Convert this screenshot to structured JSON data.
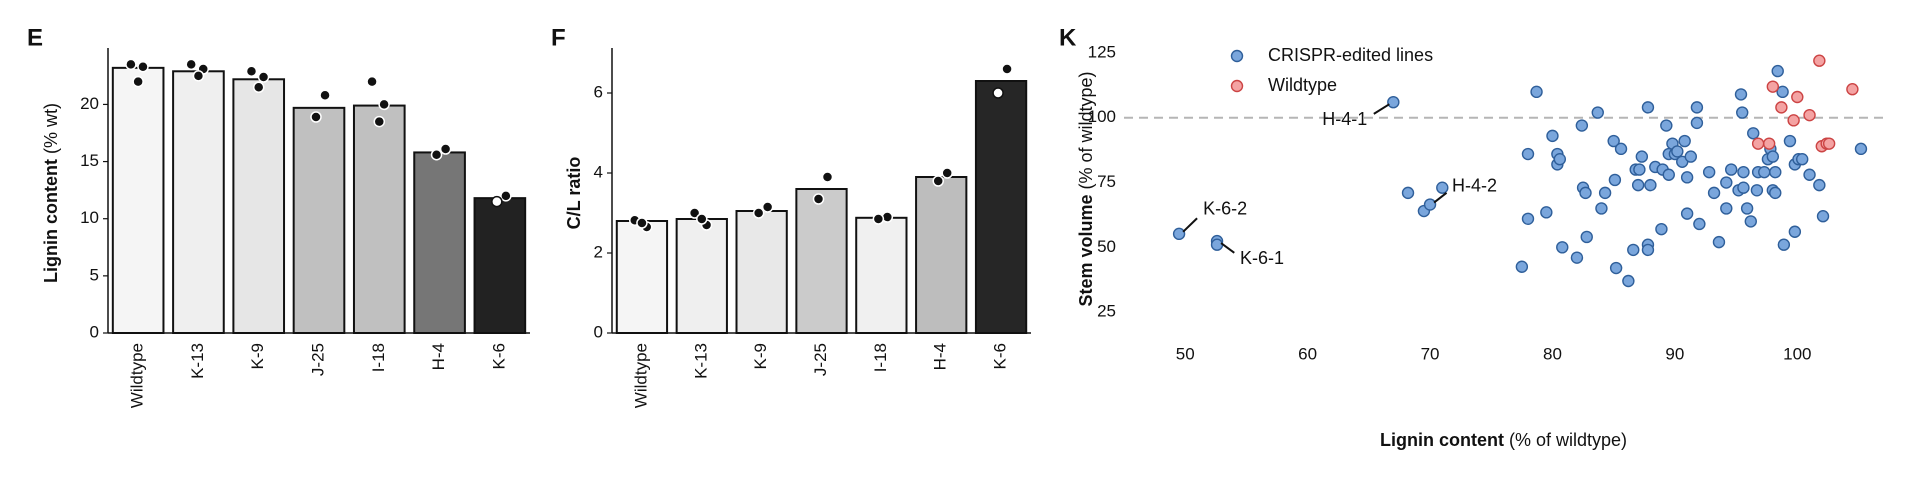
{
  "chart_data": [
    {
      "type": "bar",
      "panel_label": "E",
      "ylabel": "Lignin content",
      "ylabel_unit": "(% wt)",
      "categories": [
        "Wildtype",
        "K-13",
        "K-9",
        "J-25",
        "I-18",
        "H-4",
        "K-6"
      ],
      "values": [
        23.2,
        22.9,
        22.2,
        19.7,
        19.9,
        15.8,
        11.8
      ],
      "colors": [
        "#f5f5f5",
        "#efefef",
        "#e6e6e6",
        "#c0c0c0",
        "#c0c0c0",
        "#767676",
        "#222222"
      ],
      "replicates": [
        [
          23.5,
          23.3,
          22.0
        ],
        [
          23.5,
          23.1,
          22.5
        ],
        [
          22.9,
          22.4,
          21.5
        ],
        [
          20.8,
          18.9
        ],
        [
          22.0,
          20.0,
          18.5
        ],
        [
          16.1,
          15.6
        ],
        [
          12.0,
          11.5
        ]
      ],
      "ylim": [
        0,
        24.5
      ],
      "yticks": [
        0,
        5,
        10,
        15,
        20
      ]
    },
    {
      "type": "bar",
      "panel_label": "F",
      "ylabel": "C/L ratio",
      "categories": [
        "Wildtype",
        "K-13",
        "K-9",
        "J-25",
        "I-18",
        "H-4",
        "K-6"
      ],
      "values": [
        2.8,
        2.85,
        3.05,
        3.6,
        2.88,
        3.9,
        6.3
      ],
      "colors": [
        "#f5f5f5",
        "#efefef",
        "#e8e8e8",
        "#cbcbcb",
        "#f0f0f0",
        "#bdbdbd",
        "#262626"
      ],
      "replicates": [
        [
          2.82,
          2.65,
          2.75
        ],
        [
          3.0,
          2.7,
          2.85
        ],
        [
          3.15,
          3.0
        ],
        [
          3.9,
          3.35
        ],
        [
          2.9,
          2.85
        ],
        [
          4.0,
          3.8
        ],
        [
          6.6,
          6.0
        ]
      ],
      "ylim": [
        0,
        7
      ],
      "yticks": [
        0,
        2,
        4,
        6
      ]
    },
    {
      "type": "scatter",
      "panel_label": "K",
      "xlabel": "Lignin content",
      "xlabel_unit": "(% of wildtype)",
      "ylabel": "Stem volume",
      "ylabel_unit": "(% of wildtype)",
      "xlim": [
        45,
        107
      ],
      "ylim": [
        15,
        130
      ],
      "xticks": [
        50,
        60,
        70,
        80,
        90,
        100
      ],
      "yticks": [
        25,
        50,
        75,
        100,
        125
      ],
      "reference_line": 100,
      "series": [
        {
          "name": "CRISPR-edited lines",
          "color": "#7aa6dc",
          "edge": "#2f5f9a",
          "x": [
            49.5,
            52.6,
            52.6,
            67,
            68.2,
            69.5,
            70,
            71,
            77.5,
            78,
            78,
            78.7,
            79.5,
            80,
            80.4,
            80.4,
            80.6,
            80.8,
            82,
            82.4,
            82.5,
            82.7,
            82.8,
            83.7,
            84,
            84.3,
            85,
            85.1,
            85.6,
            85.2,
            86.2,
            86.6,
            86.8,
            87,
            87.1,
            87.3,
            87.8,
            87.8,
            87.8,
            88,
            88.4,
            88.9,
            89,
            89.3,
            89.5,
            89.5,
            89.8,
            90,
            90.2,
            90.6,
            90.8,
            91,
            91.3,
            91,
            91.8,
            91.8,
            92,
            92.8,
            93.2,
            93.6,
            94.2,
            94.2,
            94.6,
            95.2,
            95.4,
            95.5,
            95.6,
            95.6,
            95.9,
            96.2,
            96.4,
            96.7,
            96.8,
            97.3,
            97.6,
            97.8,
            98,
            98,
            98.2,
            98.2,
            98.4,
            98.8,
            98.9,
            99.4,
            99.8,
            99.8,
            100.1,
            100.4,
            101,
            101.8,
            102.1,
            105.2
          ],
          "y": [
            55.2,
            52.4,
            51,
            106,
            71,
            64,
            66.5,
            73,
            42.5,
            61,
            86,
            110,
            63.5,
            93,
            86,
            82,
            84,
            50,
            46,
            97,
            73,
            71,
            54,
            102,
            65,
            71,
            91,
            76,
            88,
            42,
            37,
            49,
            80,
            74,
            80,
            85,
            104,
            51,
            49,
            74,
            81,
            57,
            80,
            97,
            78,
            86,
            90,
            86,
            87,
            83,
            91,
            77,
            85,
            63,
            98,
            104,
            59,
            79,
            71,
            52,
            75,
            65,
            80,
            72,
            109,
            102,
            79,
            73,
            65,
            60,
            94,
            72,
            79,
            79,
            84,
            88,
            85,
            72,
            79,
            71,
            118,
            110,
            51,
            91,
            56,
            82,
            84,
            84,
            78,
            74,
            62,
            88
          ]
        },
        {
          "name": "Wildtype",
          "color": "#f4a3a3",
          "edge": "#cc4444",
          "x": [
            98,
            98.7,
            100,
            101,
            99.7,
            97.7,
            96.8,
            101.8,
            104.5,
            102,
            102.4,
            102.6
          ],
          "y": [
            112,
            104,
            108,
            101,
            99,
            90,
            90,
            122,
            111,
            89,
            90,
            90
          ]
        }
      ],
      "annotations": [
        {
          "text": "H-4-1",
          "x": 67,
          "y": 106
        },
        {
          "text": "H-4-2",
          "x": 70,
          "y": 66.5
        },
        {
          "text": "K-6-2",
          "x": 49.5,
          "y": 55.2
        },
        {
          "text": "K-6-1",
          "x": 52.6,
          "y": 52.4
        }
      ]
    }
  ]
}
